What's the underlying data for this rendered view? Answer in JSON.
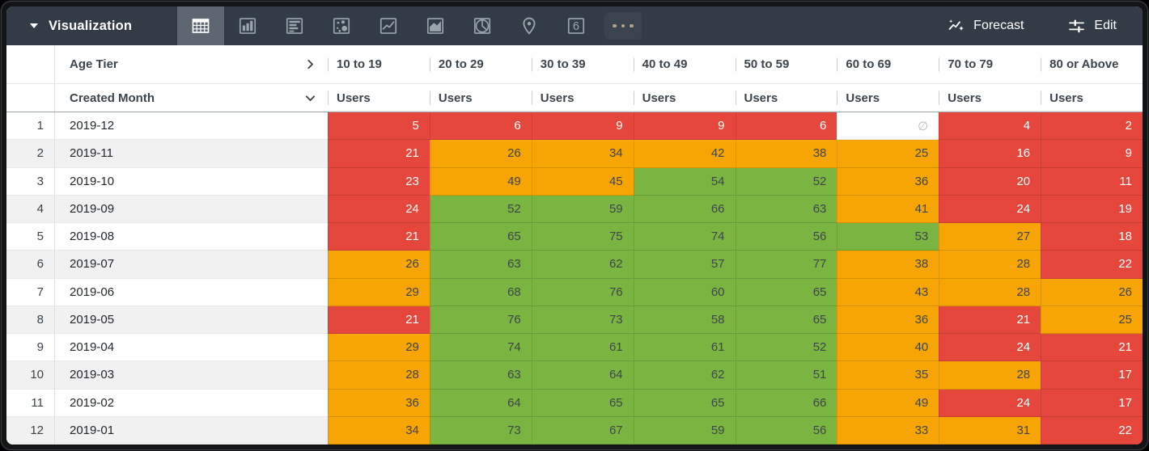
{
  "toolbar": {
    "title": "Visualization",
    "forecast_label": "Forecast",
    "edit_label": "Edit",
    "vis_types": [
      {
        "name": "table",
        "icon": "table-icon",
        "selected": true
      },
      {
        "name": "column-chart",
        "icon": "column-chart-icon",
        "selected": false
      },
      {
        "name": "bar-chart",
        "icon": "bar-chart-icon",
        "selected": false
      },
      {
        "name": "scatter",
        "icon": "scatter-icon",
        "selected": false
      },
      {
        "name": "line-chart",
        "icon": "line-chart-icon",
        "selected": false
      },
      {
        "name": "area-chart",
        "icon": "area-chart-icon",
        "selected": false
      },
      {
        "name": "pie-chart",
        "icon": "pie-chart-icon",
        "selected": false
      },
      {
        "name": "map",
        "icon": "map-pin-icon",
        "selected": false
      },
      {
        "name": "single-value",
        "icon": "single-value-icon",
        "selected": false,
        "glyph": "6"
      },
      {
        "name": "more",
        "icon": "more-dots-icon",
        "selected": false
      }
    ]
  },
  "table": {
    "pivot_field_label": "Age Tier",
    "row_field_label": "Created Month",
    "measure_label": "Users",
    "null_glyph": "∅",
    "columns": [
      "10 to 19",
      "20 to 29",
      "30 to 39",
      "40 to 49",
      "50 to 59",
      "60 to 69",
      "70 to 79",
      "80 or Above"
    ],
    "rows": [
      {
        "index": 1,
        "month": "2019-12",
        "cells": [
          {
            "value": 5,
            "color": "red"
          },
          {
            "value": 6,
            "color": "red"
          },
          {
            "value": 9,
            "color": "red"
          },
          {
            "value": 9,
            "color": "red"
          },
          {
            "value": 6,
            "color": "red"
          },
          {
            "value": null,
            "color": "null"
          },
          {
            "value": 4,
            "color": "red"
          },
          {
            "value": 2,
            "color": "red"
          }
        ]
      },
      {
        "index": 2,
        "month": "2019-11",
        "cells": [
          {
            "value": 21,
            "color": "red"
          },
          {
            "value": 26,
            "color": "orange"
          },
          {
            "value": 34,
            "color": "orange"
          },
          {
            "value": 42,
            "color": "orange"
          },
          {
            "value": 38,
            "color": "orange"
          },
          {
            "value": 25,
            "color": "orange"
          },
          {
            "value": 16,
            "color": "red"
          },
          {
            "value": 9,
            "color": "red"
          }
        ]
      },
      {
        "index": 3,
        "month": "2019-10",
        "cells": [
          {
            "value": 23,
            "color": "red"
          },
          {
            "value": 49,
            "color": "orange"
          },
          {
            "value": 45,
            "color": "orange"
          },
          {
            "value": 54,
            "color": "green"
          },
          {
            "value": 52,
            "color": "green"
          },
          {
            "value": 36,
            "color": "orange"
          },
          {
            "value": 20,
            "color": "red"
          },
          {
            "value": 11,
            "color": "red"
          }
        ]
      },
      {
        "index": 4,
        "month": "2019-09",
        "cells": [
          {
            "value": 24,
            "color": "red"
          },
          {
            "value": 52,
            "color": "green"
          },
          {
            "value": 59,
            "color": "green"
          },
          {
            "value": 66,
            "color": "green"
          },
          {
            "value": 63,
            "color": "green"
          },
          {
            "value": 41,
            "color": "orange"
          },
          {
            "value": 24,
            "color": "red"
          },
          {
            "value": 19,
            "color": "red"
          }
        ]
      },
      {
        "index": 5,
        "month": "2019-08",
        "cells": [
          {
            "value": 21,
            "color": "red"
          },
          {
            "value": 65,
            "color": "green"
          },
          {
            "value": 75,
            "color": "green"
          },
          {
            "value": 74,
            "color": "green"
          },
          {
            "value": 56,
            "color": "green"
          },
          {
            "value": 53,
            "color": "green"
          },
          {
            "value": 27,
            "color": "orange"
          },
          {
            "value": 18,
            "color": "red"
          }
        ]
      },
      {
        "index": 6,
        "month": "2019-07",
        "cells": [
          {
            "value": 26,
            "color": "orange"
          },
          {
            "value": 63,
            "color": "green"
          },
          {
            "value": 62,
            "color": "green"
          },
          {
            "value": 57,
            "color": "green"
          },
          {
            "value": 77,
            "color": "green"
          },
          {
            "value": 38,
            "color": "orange"
          },
          {
            "value": 28,
            "color": "orange"
          },
          {
            "value": 22,
            "color": "red"
          }
        ]
      },
      {
        "index": 7,
        "month": "2019-06",
        "cells": [
          {
            "value": 29,
            "color": "orange"
          },
          {
            "value": 68,
            "color": "green"
          },
          {
            "value": 76,
            "color": "green"
          },
          {
            "value": 60,
            "color": "green"
          },
          {
            "value": 65,
            "color": "green"
          },
          {
            "value": 43,
            "color": "orange"
          },
          {
            "value": 28,
            "color": "orange"
          },
          {
            "value": 26,
            "color": "orange"
          }
        ]
      },
      {
        "index": 8,
        "month": "2019-05",
        "cells": [
          {
            "value": 21,
            "color": "red"
          },
          {
            "value": 76,
            "color": "green"
          },
          {
            "value": 73,
            "color": "green"
          },
          {
            "value": 58,
            "color": "green"
          },
          {
            "value": 65,
            "color": "green"
          },
          {
            "value": 36,
            "color": "orange"
          },
          {
            "value": 21,
            "color": "red"
          },
          {
            "value": 25,
            "color": "orange"
          }
        ]
      },
      {
        "index": 9,
        "month": "2019-04",
        "cells": [
          {
            "value": 29,
            "color": "orange"
          },
          {
            "value": 74,
            "color": "green"
          },
          {
            "value": 61,
            "color": "green"
          },
          {
            "value": 61,
            "color": "green"
          },
          {
            "value": 52,
            "color": "green"
          },
          {
            "value": 40,
            "color": "orange"
          },
          {
            "value": 24,
            "color": "red"
          },
          {
            "value": 21,
            "color": "red"
          }
        ]
      },
      {
        "index": 10,
        "month": "2019-03",
        "cells": [
          {
            "value": 28,
            "color": "orange"
          },
          {
            "value": 63,
            "color": "green"
          },
          {
            "value": 64,
            "color": "green"
          },
          {
            "value": 62,
            "color": "green"
          },
          {
            "value": 51,
            "color": "green"
          },
          {
            "value": 35,
            "color": "orange"
          },
          {
            "value": 28,
            "color": "orange"
          },
          {
            "value": 17,
            "color": "red"
          }
        ]
      },
      {
        "index": 11,
        "month": "2019-02",
        "cells": [
          {
            "value": 36,
            "color": "orange"
          },
          {
            "value": 64,
            "color": "green"
          },
          {
            "value": 65,
            "color": "green"
          },
          {
            "value": 65,
            "color": "green"
          },
          {
            "value": 66,
            "color": "green"
          },
          {
            "value": 49,
            "color": "orange"
          },
          {
            "value": 24,
            "color": "red"
          },
          {
            "value": 17,
            "color": "red"
          }
        ]
      },
      {
        "index": 12,
        "month": "2019-01",
        "cells": [
          {
            "value": 34,
            "color": "orange"
          },
          {
            "value": 73,
            "color": "green"
          },
          {
            "value": 67,
            "color": "green"
          },
          {
            "value": 59,
            "color": "green"
          },
          {
            "value": 56,
            "color": "green"
          },
          {
            "value": 33,
            "color": "orange"
          },
          {
            "value": 31,
            "color": "orange"
          },
          {
            "value": 22,
            "color": "red"
          }
        ]
      }
    ]
  },
  "colors": {
    "topbar_bg": "#333C46",
    "selected_tile_bg": "#5E6771",
    "icon_gray": "#9BA5AE",
    "heat_red": "#E5473D",
    "heat_orange": "#F6A504",
    "heat_green": "#7AB541",
    "null_text": "#B7BEC3",
    "header_text": "#3C454C",
    "stripe_bg": "#F1F1F2"
  }
}
